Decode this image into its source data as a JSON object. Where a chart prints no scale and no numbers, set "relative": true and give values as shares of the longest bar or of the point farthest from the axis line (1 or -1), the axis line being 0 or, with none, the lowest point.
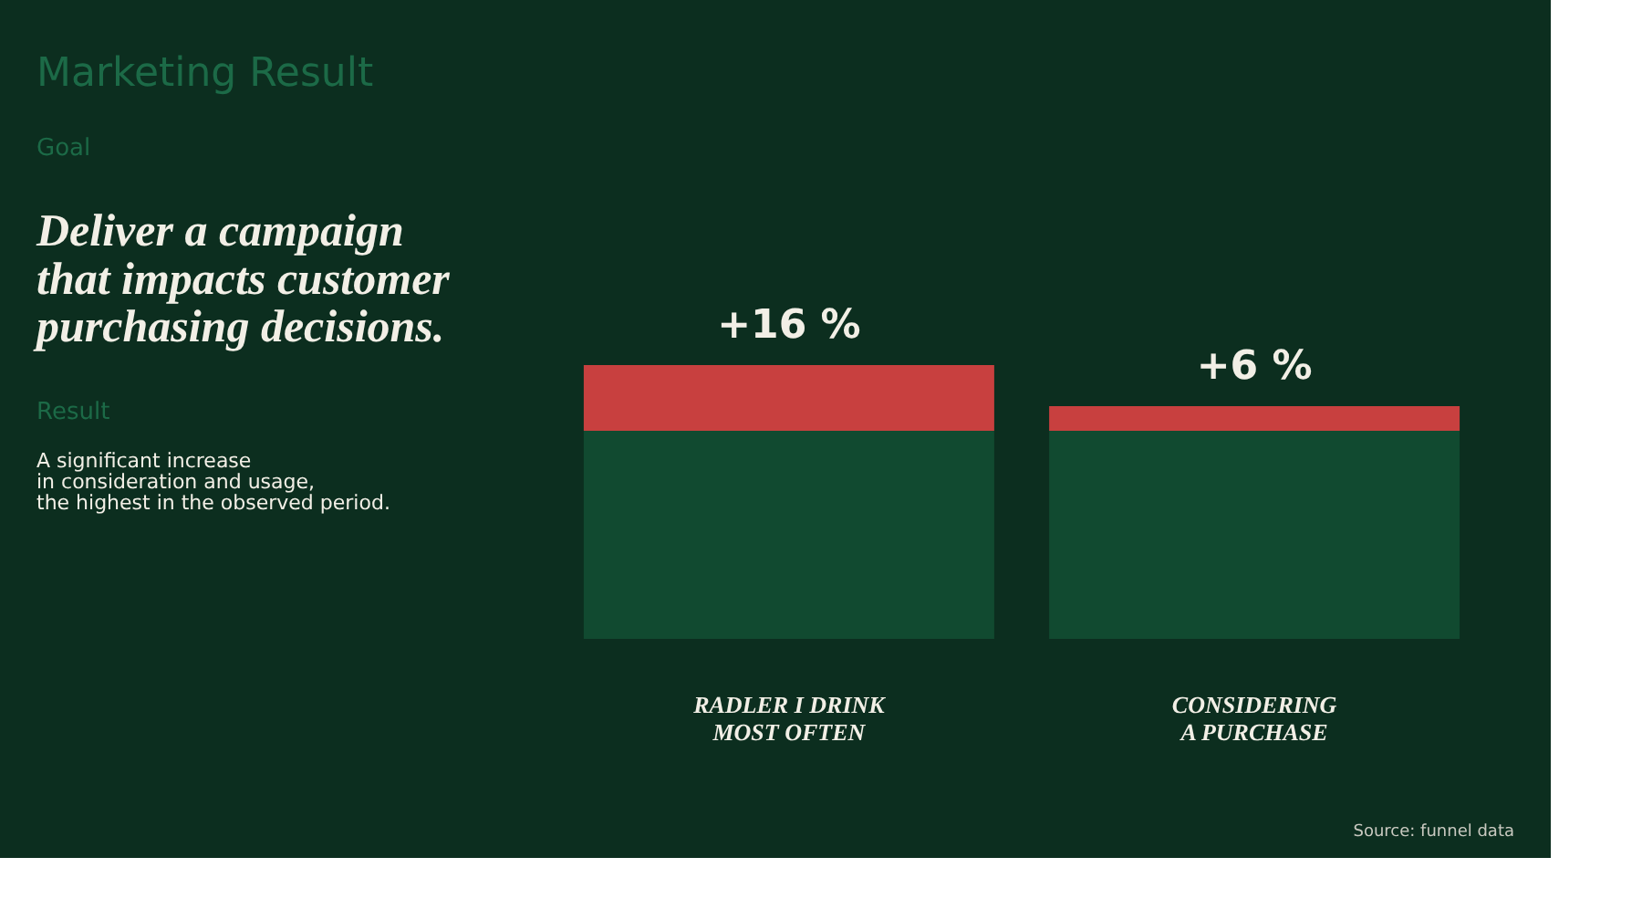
{
  "chart_data": {
    "type": "bar",
    "title": "Marketing Result",
    "stacked": true,
    "relative": true,
    "categories": [
      "RADLER I DRINK\nMOST OFTEN",
      "CONSIDERING\nA PURCHASE"
    ],
    "series": [
      {
        "color": "#114a30",
        "values": [
          0.76,
          0.76
        ]
      },
      {
        "color": "#c8403f",
        "values": [
          0.24,
          0.09
        ]
      }
    ],
    "annotations": [
      {
        "text": "+16 %",
        "x": "RADLER I DRINK\nMOST OFTEN",
        "y": 1.0
      },
      {
        "text": "+6 %",
        "x": "CONSIDERING\nA PURCHASE",
        "y": 0.85
      },
      "Goal",
      "Deliver a campaign that impacts customer purchasing decisions.",
      "Result",
      "A significant increase\nin consideration and usage,\nthe highest in the observed period.",
      "Source: funnel data"
    ],
    "orientation": "vertical"
  }
}
